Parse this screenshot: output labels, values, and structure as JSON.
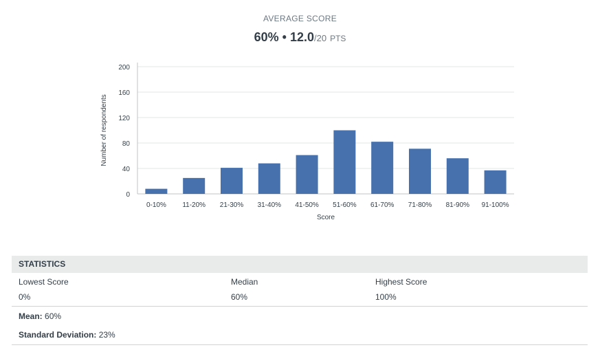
{
  "header": {
    "title": "AVERAGE SCORE",
    "percent": "60%",
    "bullet": "•",
    "points": "12.0",
    "points_total": "/20",
    "points_unit": "PTS"
  },
  "chart_data": {
    "type": "bar",
    "categories": [
      "0-10%",
      "11-20%",
      "21-30%",
      "31-40%",
      "41-50%",
      "51-60%",
      "61-70%",
      "71-80%",
      "81-90%",
      "91-100%"
    ],
    "values": [
      8,
      25,
      41,
      48,
      61,
      100,
      82,
      71,
      56,
      37
    ],
    "xlabel": "Score",
    "ylabel": "Number of respondents",
    "ylim": [
      0,
      200
    ],
    "yticks": [
      0,
      40,
      80,
      120,
      160,
      200
    ],
    "grid": true,
    "bar_color": "#4771ad",
    "grid_color": "#e3e5e6",
    "axis_color": "#bfc3c6",
    "text_color": "#333e48"
  },
  "statistics": {
    "title": "STATISTICS",
    "lowest": {
      "label": "Lowest Score",
      "value": "0%"
    },
    "median": {
      "label": "Median",
      "value": "60%"
    },
    "highest": {
      "label": "Highest Score",
      "value": "100%"
    },
    "mean": {
      "label": "Mean:",
      "value": "60%"
    },
    "std_dev": {
      "label": "Standard Deviation:",
      "value": "23%"
    }
  }
}
